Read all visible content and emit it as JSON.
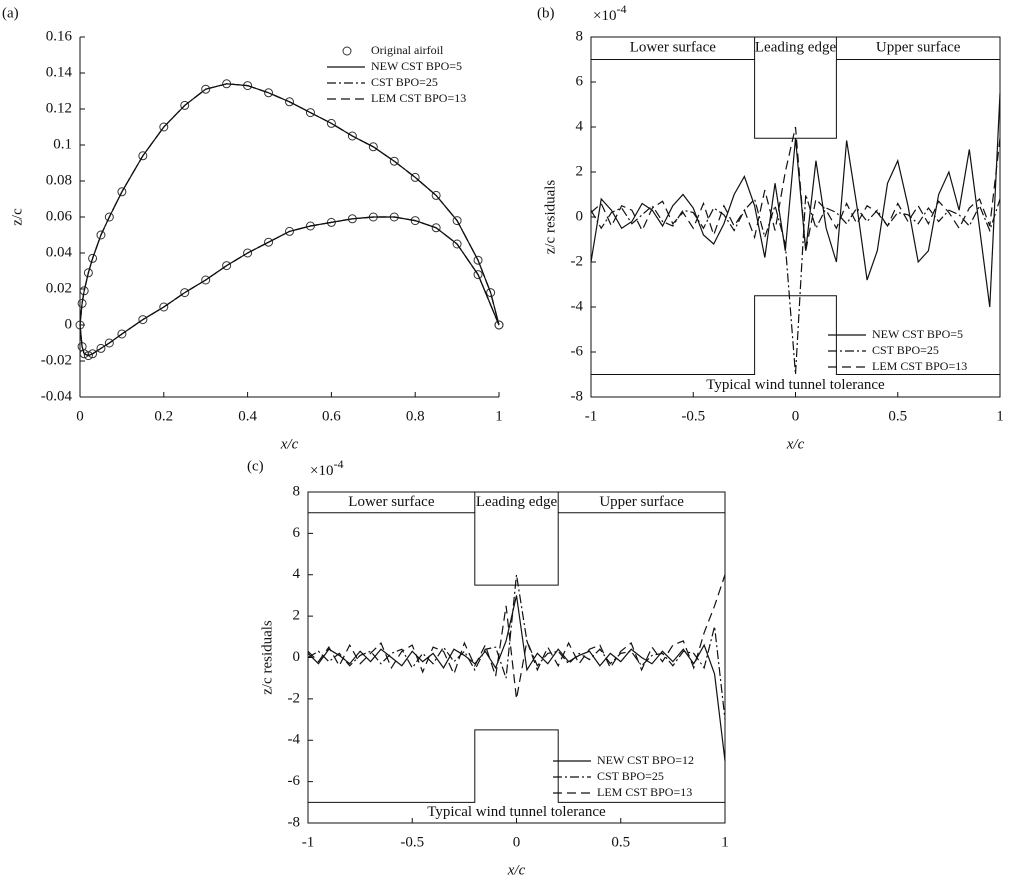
{
  "chart_data": [
    {
      "type": "line",
      "label": "(a)",
      "x_label": "x/c",
      "y_label": "z/c",
      "xlim": [
        0,
        1
      ],
      "ylim": [
        -0.04,
        0.16
      ],
      "xticks": [
        0,
        0.2,
        0.4,
        0.6,
        0.8,
        1
      ],
      "yticks": [
        -0.04,
        -0.02,
        0,
        0.02,
        0.04,
        0.06,
        0.08,
        0.1,
        0.12,
        0.14,
        0.16
      ],
      "legend": "upper right",
      "box": false,
      "x": [
        1,
        0.95,
        0.9,
        0.85,
        0.8,
        0.75,
        0.7,
        0.65,
        0.6,
        0.55,
        0.5,
        0.45,
        0.4,
        0.35,
        0.3,
        0.25,
        0.2,
        0.15,
        0.1,
        0.07,
        0.05,
        0.03,
        0.02,
        0.01,
        0.005,
        0,
        0.005,
        0.01,
        0.02,
        0.03,
        0.05,
        0.07,
        0.1,
        0.15,
        0.2,
        0.25,
        0.3,
        0.35,
        0.4,
        0.45,
        0.5,
        0.55,
        0.6,
        0.65,
        0.7,
        0.75,
        0.8,
        0.85,
        0.9,
        0.95,
        0.98,
        1
      ],
      "series": [
        {
          "name": "Original airfoil",
          "style": "circle",
          "color": "#333333",
          "values": [
            0,
            0.028,
            0.045,
            0.054,
            0.058,
            0.06,
            0.06,
            0.059,
            0.057,
            0.055,
            0.052,
            0.046,
            0.04,
            0.033,
            0.025,
            0.018,
            0.01,
            0.003,
            -0.005,
            -0.01,
            -0.013,
            -0.016,
            -0.017,
            -0.016,
            -0.012,
            0,
            0.012,
            0.019,
            0.029,
            0.037,
            0.05,
            0.06,
            0.074,
            0.094,
            0.11,
            0.122,
            0.131,
            0.134,
            0.133,
            0.129,
            0.124,
            0.118,
            0.112,
            0.105,
            0.099,
            0.091,
            0.082,
            0.072,
            0.058,
            0.036,
            0.018,
            0
          ]
        },
        {
          "name": "NEW CST BPO=5",
          "style": "solid",
          "color": "#111111",
          "values": [
            0,
            0.028,
            0.045,
            0.054,
            0.058,
            0.06,
            0.06,
            0.059,
            0.057,
            0.055,
            0.052,
            0.046,
            0.04,
            0.033,
            0.025,
            0.018,
            0.01,
            0.003,
            -0.005,
            -0.01,
            -0.013,
            -0.016,
            -0.017,
            -0.016,
            -0.012,
            0,
            0.012,
            0.019,
            0.029,
            0.037,
            0.05,
            0.06,
            0.074,
            0.094,
            0.11,
            0.122,
            0.131,
            0.134,
            0.133,
            0.129,
            0.124,
            0.118,
            0.112,
            0.105,
            0.099,
            0.091,
            0.082,
            0.072,
            0.058,
            0.036,
            0.018,
            0
          ]
        },
        {
          "name": "CST BPO=25",
          "style": "dashdot",
          "color": "#111111",
          "values": [
            0,
            0.028,
            0.045,
            0.054,
            0.058,
            0.06,
            0.06,
            0.059,
            0.057,
            0.055,
            0.052,
            0.046,
            0.04,
            0.033,
            0.025,
            0.018,
            0.01,
            0.003,
            -0.005,
            -0.01,
            -0.013,
            -0.016,
            -0.017,
            -0.016,
            -0.012,
            0,
            0.012,
            0.019,
            0.029,
            0.037,
            0.05,
            0.06,
            0.074,
            0.094,
            0.11,
            0.122,
            0.131,
            0.134,
            0.133,
            0.129,
            0.124,
            0.118,
            0.112,
            0.105,
            0.099,
            0.091,
            0.082,
            0.072,
            0.058,
            0.036,
            0.018,
            0
          ]
        },
        {
          "name": "LEM CST BPO=13",
          "style": "dashed",
          "color": "#111111",
          "values": [
            0,
            0.028,
            0.045,
            0.054,
            0.058,
            0.06,
            0.06,
            0.059,
            0.057,
            0.055,
            0.052,
            0.046,
            0.04,
            0.033,
            0.025,
            0.018,
            0.01,
            0.003,
            -0.005,
            -0.01,
            -0.013,
            -0.016,
            -0.017,
            -0.016,
            -0.012,
            0,
            0.012,
            0.019,
            0.029,
            0.037,
            0.05,
            0.06,
            0.074,
            0.094,
            0.11,
            0.122,
            0.131,
            0.134,
            0.133,
            0.129,
            0.124,
            0.118,
            0.112,
            0.105,
            0.099,
            0.091,
            0.082,
            0.072,
            0.058,
            0.036,
            0.018,
            0
          ]
        }
      ]
    },
    {
      "type": "line",
      "label": "(b)",
      "x_label": "x/c",
      "y_label": "z/c residuals",
      "y_multiplier": {
        "base": "×10",
        "exponent": "-4"
      },
      "xlim": [
        -1,
        1
      ],
      "ylim": [
        -8,
        8
      ],
      "xticks": [
        -1,
        -0.5,
        0,
        0.5,
        1
      ],
      "yticks": [
        -8,
        -6,
        -4,
        -2,
        0,
        2,
        4,
        6,
        8
      ],
      "legend": "lower right",
      "box": true,
      "annotations": [
        "Lower surface",
        "Leading edge",
        "Upper surface",
        "Typical wind tunnel tolerance"
      ],
      "tolerance": {
        "x": [
          -1,
          -0.2,
          -0.2,
          0.2,
          0.2,
          1
        ],
        "upper": [
          7,
          7,
          3.5,
          3.5,
          7,
          7
        ],
        "lower": [
          -7,
          -7,
          -3.5,
          -3.5,
          -7,
          -7
        ]
      },
      "x": [
        -1,
        -0.95,
        -0.9,
        -0.85,
        -0.8,
        -0.75,
        -0.7,
        -0.65,
        -0.6,
        -0.55,
        -0.5,
        -0.45,
        -0.4,
        -0.35,
        -0.3,
        -0.25,
        -0.2,
        -0.15,
        -0.1,
        -0.05,
        0,
        0.05,
        0.1,
        0.15,
        0.2,
        0.25,
        0.3,
        0.35,
        0.4,
        0.45,
        0.5,
        0.55,
        0.6,
        0.65,
        0.7,
        0.75,
        0.8,
        0.85,
        0.9,
        0.95,
        1
      ],
      "series": [
        {
          "name": "NEW CST BPO=5",
          "style": "solid",
          "color": "#111111",
          "values": [
            -2,
            0.8,
            0.3,
            -0.5,
            -0.2,
            0.6,
            0.3,
            -0.4,
            0.5,
            1.0,
            0.4,
            -0.8,
            -1.2,
            -0.3,
            1.0,
            1.8,
            0.5,
            -1.8,
            1.5,
            -1.5,
            3.5,
            -1.5,
            2.5,
            -0.5,
            -2.0,
            3.4,
            0.5,
            -2.8,
            -1.5,
            1.5,
            2.5,
            0.5,
            -2.0,
            -1.5,
            1.0,
            2.0,
            0.3,
            3.0,
            -0.5,
            -4.0,
            5.5
          ]
        },
        {
          "name": "CST BPO=25",
          "style": "dashdot",
          "color": "#111111",
          "values": [
            0.3,
            -0.5,
            0.2,
            0.4,
            -0.3,
            0.1,
            0.5,
            -0.2,
            -0.4,
            0.3,
            0.2,
            -0.5,
            0.4,
            0.1,
            -0.6,
            0.3,
            0.8,
            -0.9,
            0.5,
            -1.2,
            -7,
            1.0,
            -0.5,
            0.4,
            0.2,
            -0.3,
            0.4,
            -0.2,
            0.3,
            -0.4,
            0.2,
            0.1,
            -0.3,
            0.4,
            -0.2,
            0.3,
            0.1,
            -0.4,
            0.5,
            -0.6,
            0.8
          ]
        },
        {
          "name": "LEM CST BPO=13",
          "style": "dashed",
          "color": "#111111",
          "values": [
            0.2,
            0.6,
            -0.4,
            0.5,
            0.3,
            -0.6,
            0.4,
            0.7,
            -0.3,
            0.2,
            -0.5,
            0.6,
            -0.8,
            0.5,
            -0.4,
            0.3,
            -0.9,
            1.2,
            -0.6,
            2.0,
            4.0,
            -1.5,
            0.8,
            0.3,
            -0.5,
            0.6,
            -0.3,
            0.5,
            0.2,
            -0.4,
            0.6,
            -0.2,
            0.5,
            -0.3,
            0.7,
            0.2,
            -0.5,
            0.4,
            0.8,
            -0.4,
            3.5
          ]
        }
      ]
    },
    {
      "type": "line",
      "label": "(c)",
      "x_label": "x/c",
      "y_label": "z/c residuals",
      "y_multiplier": {
        "base": "×10",
        "exponent": "-4"
      },
      "xlim": [
        -1,
        1
      ],
      "ylim": [
        -8,
        8
      ],
      "xticks": [
        -1,
        -0.5,
        0,
        0.5,
        1
      ],
      "yticks": [
        -8,
        -6,
        -4,
        -2,
        0,
        2,
        4,
        6,
        8
      ],
      "legend": "lower right",
      "box": true,
      "annotations": [
        "Lower surface",
        "Leading edge",
        "Upper surface",
        "Typical wind tunnel tolerance"
      ],
      "tolerance": {
        "x": [
          -1,
          -0.2,
          -0.2,
          0.2,
          0.2,
          1
        ],
        "upper": [
          7,
          7,
          3.5,
          3.5,
          7,
          7
        ],
        "lower": [
          -7,
          -7,
          -3.5,
          -3.5,
          -7,
          -7
        ]
      },
      "x": [
        -1,
        -0.95,
        -0.9,
        -0.85,
        -0.8,
        -0.75,
        -0.7,
        -0.65,
        -0.6,
        -0.55,
        -0.5,
        -0.45,
        -0.4,
        -0.35,
        -0.3,
        -0.25,
        -0.2,
        -0.15,
        -0.1,
        -0.05,
        0,
        0.05,
        0.1,
        0.15,
        0.2,
        0.25,
        0.3,
        0.35,
        0.4,
        0.45,
        0.5,
        0.55,
        0.6,
        0.65,
        0.7,
        0.75,
        0.8,
        0.85,
        0.9,
        0.95,
        1
      ],
      "series": [
        {
          "name": "NEW CST BPO=12",
          "style": "solid",
          "color": "#111111",
          "values": [
            0.2,
            -0.3,
            0.4,
            0.1,
            -0.3,
            0.3,
            -0.2,
            0.4,
            0,
            -0.4,
            0.3,
            -0.2,
            0.2,
            -0.5,
            0.4,
            0.1,
            -0.3,
            0.3,
            -0.5,
            0.8,
            3.0,
            -0.6,
            0.2,
            -0.3,
            0.4,
            -0.2,
            0.1,
            0.3,
            -0.4,
            0.2,
            -0.2,
            0.4,
            0,
            -0.3,
            0.3,
            -0.2,
            0.4,
            -0.3,
            0.6,
            -0.8,
            -5.0
          ]
        },
        {
          "name": "CST BPO=25",
          "style": "dashdot",
          "color": "#111111",
          "values": [
            0,
            0.3,
            -0.2,
            0.2,
            -0.4,
            0.1,
            0.3,
            -0.3,
            0.2,
            0.4,
            -0.5,
            0.2,
            -0.3,
            0.5,
            -0.2,
            0.3,
            -0.6,
            0.4,
            0.5,
            -1.0,
            4.0,
            0.8,
            -0.4,
            0.2,
            0.3,
            -0.3,
            0.2,
            -0.1,
            0.4,
            -0.3,
            0.2,
            0.3,
            -0.4,
            0.1,
            0.2,
            -0.4,
            0.3,
            0.2,
            -0.5,
            1.5,
            -3.0
          ]
        },
        {
          "name": "LEM CST BPO=13",
          "style": "dashed",
          "color": "#111111",
          "values": [
            0.3,
            -0.2,
            0.5,
            -0.4,
            0.6,
            -0.3,
            0.2,
            0.7,
            -0.5,
            0.3,
            0.6,
            -0.7,
            0.5,
            0.3,
            -0.8,
            0.7,
            -0.4,
            0.6,
            -0.9,
            2.5,
            -2.0,
            0.8,
            -0.6,
            0.5,
            -0.4,
            0.7,
            -0.3,
            0.4,
            0.6,
            -0.5,
            0.3,
            0.7,
            -0.6,
            0.5,
            -0.2,
            0.6,
            0.8,
            -0.5,
            1.2,
            2.5,
            4.0
          ]
        }
      ]
    }
  ]
}
